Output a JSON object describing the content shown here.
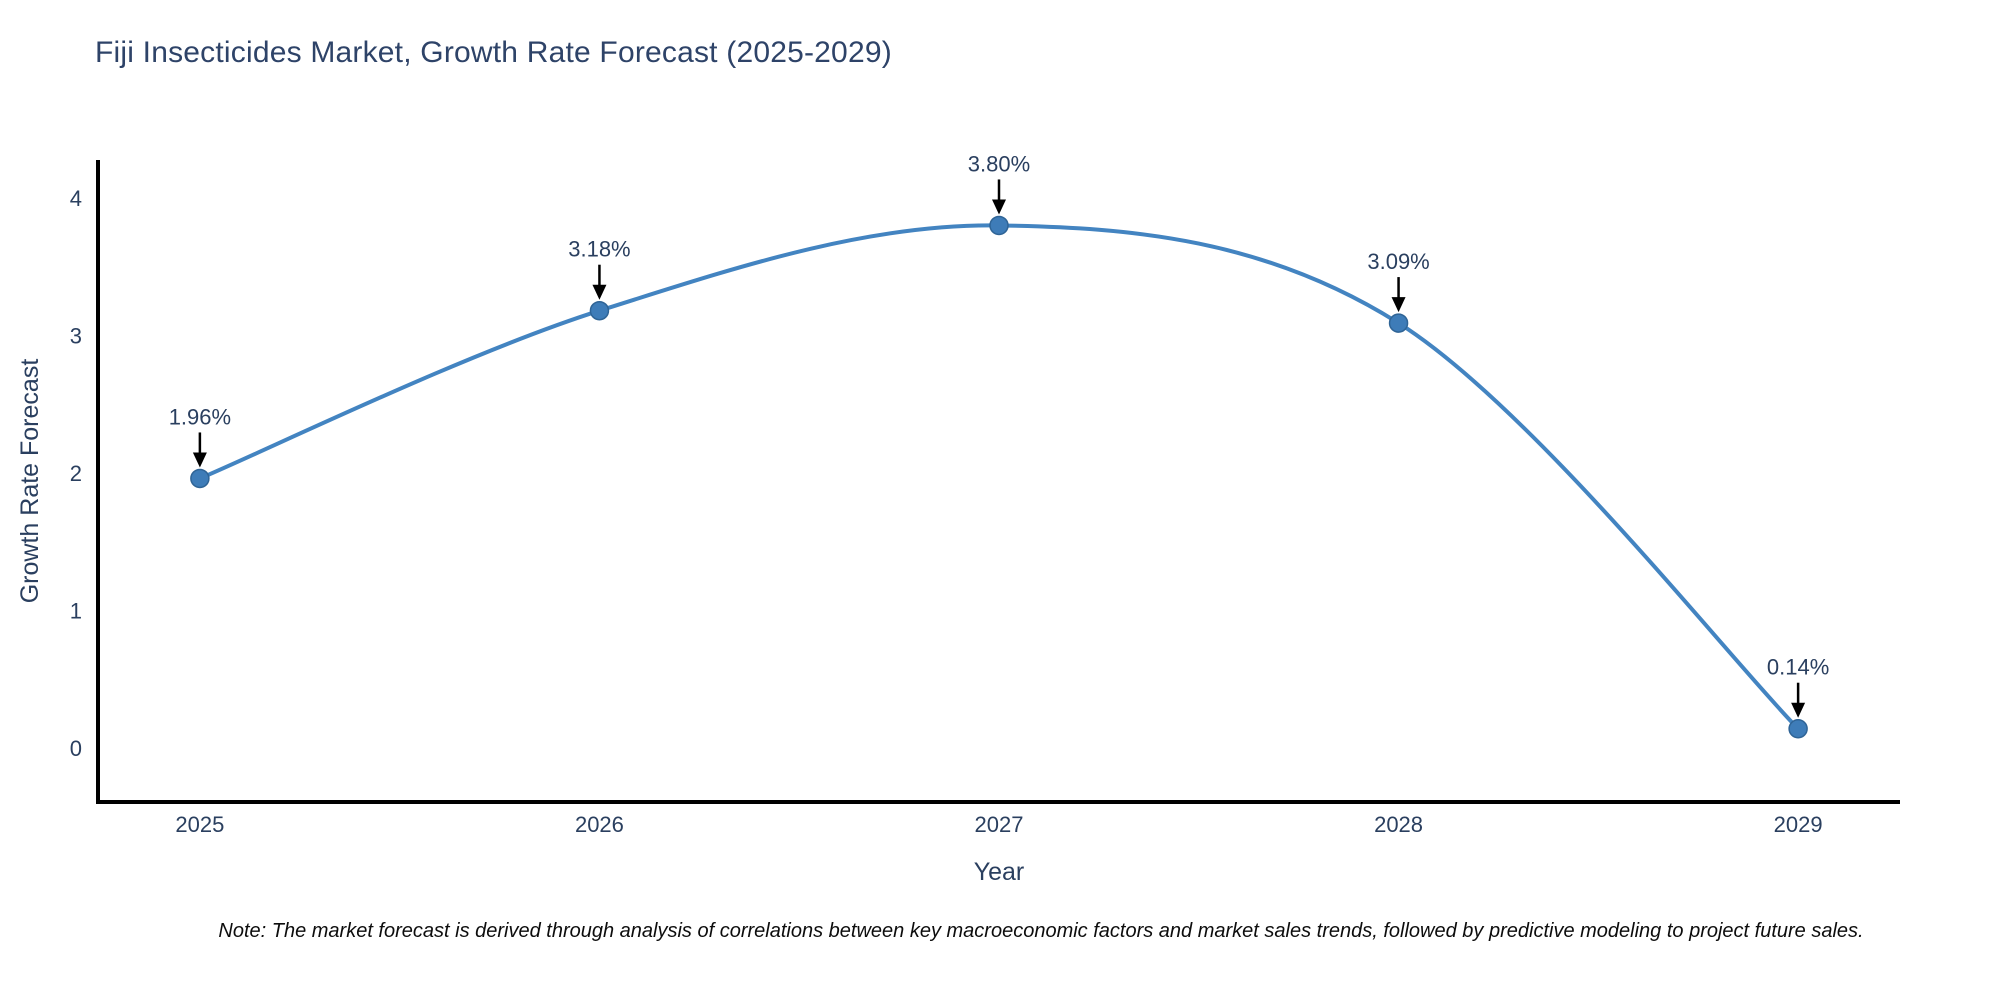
{
  "chart_data": {
    "type": "line",
    "title": "Fiji Insecticides Market, Growth Rate Forecast (2025-2029)",
    "xlabel": "Year",
    "ylabel": "Growth Rate Forecast",
    "x": [
      2025,
      2026,
      2027,
      2028,
      2029
    ],
    "y": [
      1.96,
      3.18,
      3.8,
      3.09,
      0.14
    ],
    "point_labels": [
      "1.96%",
      "3.18%",
      "3.80%",
      "3.09%",
      "0.14%"
    ],
    "x_ticks": [
      "2025",
      "2026",
      "2027",
      "2028",
      "2029"
    ],
    "y_ticks": [
      0,
      1,
      2,
      3,
      4
    ],
    "xlim": [
      2024.745,
      2029.255
    ],
    "ylim": [
      -0.393,
      4.276
    ],
    "grid": false,
    "legend": "none",
    "line_shape": "spline",
    "colors": {
      "line": "#4384c1",
      "marker_fill": "#3e7cb8",
      "marker_edge": "#2f6496",
      "axis": "#000000",
      "title_text": "#2e4368",
      "tick_text": "#2a3f5f",
      "axis_title_text": "#2a3f5f",
      "annotation_text": "#2a3f5f",
      "arrow": "#000000",
      "note_text": "#0d0d0d",
      "background": "#ffffff"
    }
  },
  "note": "Note: The market forecast is derived through analysis of correlations between key macroeconomic factors and market sales trends, followed by predictive modeling to project future sales."
}
